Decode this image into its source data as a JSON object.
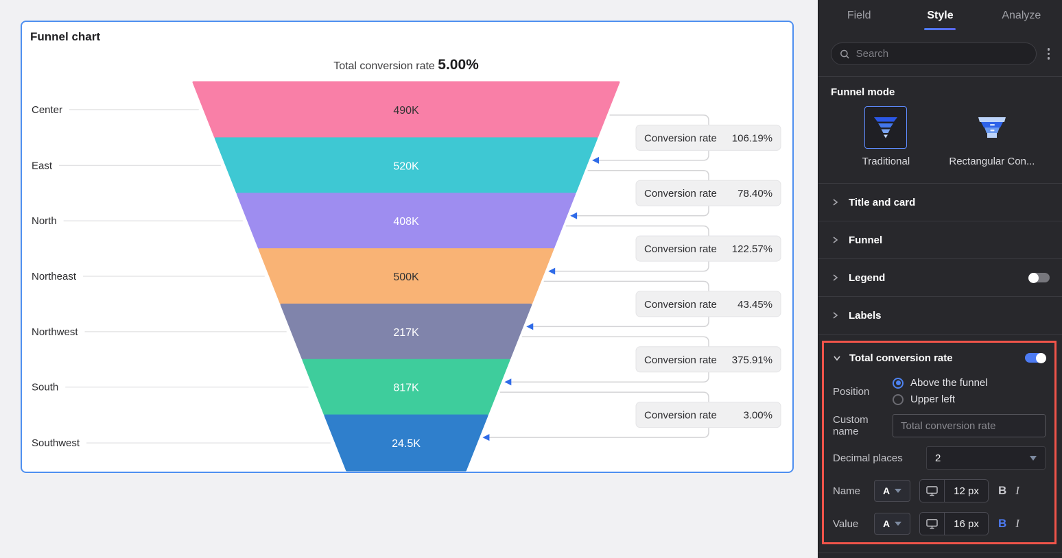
{
  "chart_data": {
    "type": "funnel",
    "card_title": "Funnel chart",
    "title": "Total conversion rate 5.00%",
    "total_label": "Total conversion rate",
    "total_value": "5.00%",
    "categories": [
      "Center",
      "East",
      "North",
      "Northeast",
      "Northwest",
      "South",
      "Southwest"
    ],
    "values": [
      490000,
      520000,
      408000,
      500000,
      217000,
      817000,
      24500
    ],
    "value_labels": [
      "490K",
      "520K",
      "408K",
      "500K",
      "217K",
      "817K",
      "24.5K"
    ],
    "segment_colors": [
      "#F97FA7",
      "#3EC8D3",
      "#9E8DF0",
      "#F9B375",
      "#8084AB",
      "#3ECD9C",
      "#2F7FCC"
    ],
    "value_label_colors": [
      "#333333",
      "#FFFFFF",
      "#FFFFFF",
      "#333333",
      "#FFFFFF",
      "#FFFFFF",
      "#FFFFFF"
    ],
    "conversion_label": "Conversion rate",
    "conversion_rates": [
      "106.19%",
      "78.40%",
      "122.57%",
      "43.45%",
      "375.91%",
      "3.00%"
    ],
    "legend_visible": false,
    "accent_arrow_color": "#2F6BE8",
    "connector_color": "#D4D4D6",
    "badge_bg": "#F0F0F1"
  },
  "panel": {
    "tabs": {
      "field": "Field",
      "style": "Style",
      "analyze": "Analyze"
    },
    "active_tab": "Style",
    "search_placeholder": "Search",
    "funnel_mode_title": "Funnel mode",
    "mode_traditional": "Traditional",
    "mode_rectangular": "Rectangular Con...",
    "sections": {
      "title_card": "Title and card",
      "funnel": "Funnel",
      "legend": "Legend",
      "labels": "Labels"
    },
    "legend_toggle": "off",
    "tcr": {
      "title": "Total conversion rate",
      "toggle": "on",
      "position_label": "Position",
      "position_options": [
        "Above the funnel",
        "Upper left"
      ],
      "selected_position": "Above the funnel",
      "custom_name_label": "Custom name",
      "custom_name_placeholder": "Total conversion rate",
      "decimal_label": "Decimal places",
      "decimal_value": "2",
      "name_row_label": "Name",
      "name_font_size": "12 px",
      "value_row_label": "Value",
      "value_font_size": "16 px",
      "color_button_glyph": "A",
      "bold_glyph": "B",
      "italic_glyph": "I",
      "value_bold_active": true
    },
    "highlight_color": "#F0544A"
  }
}
